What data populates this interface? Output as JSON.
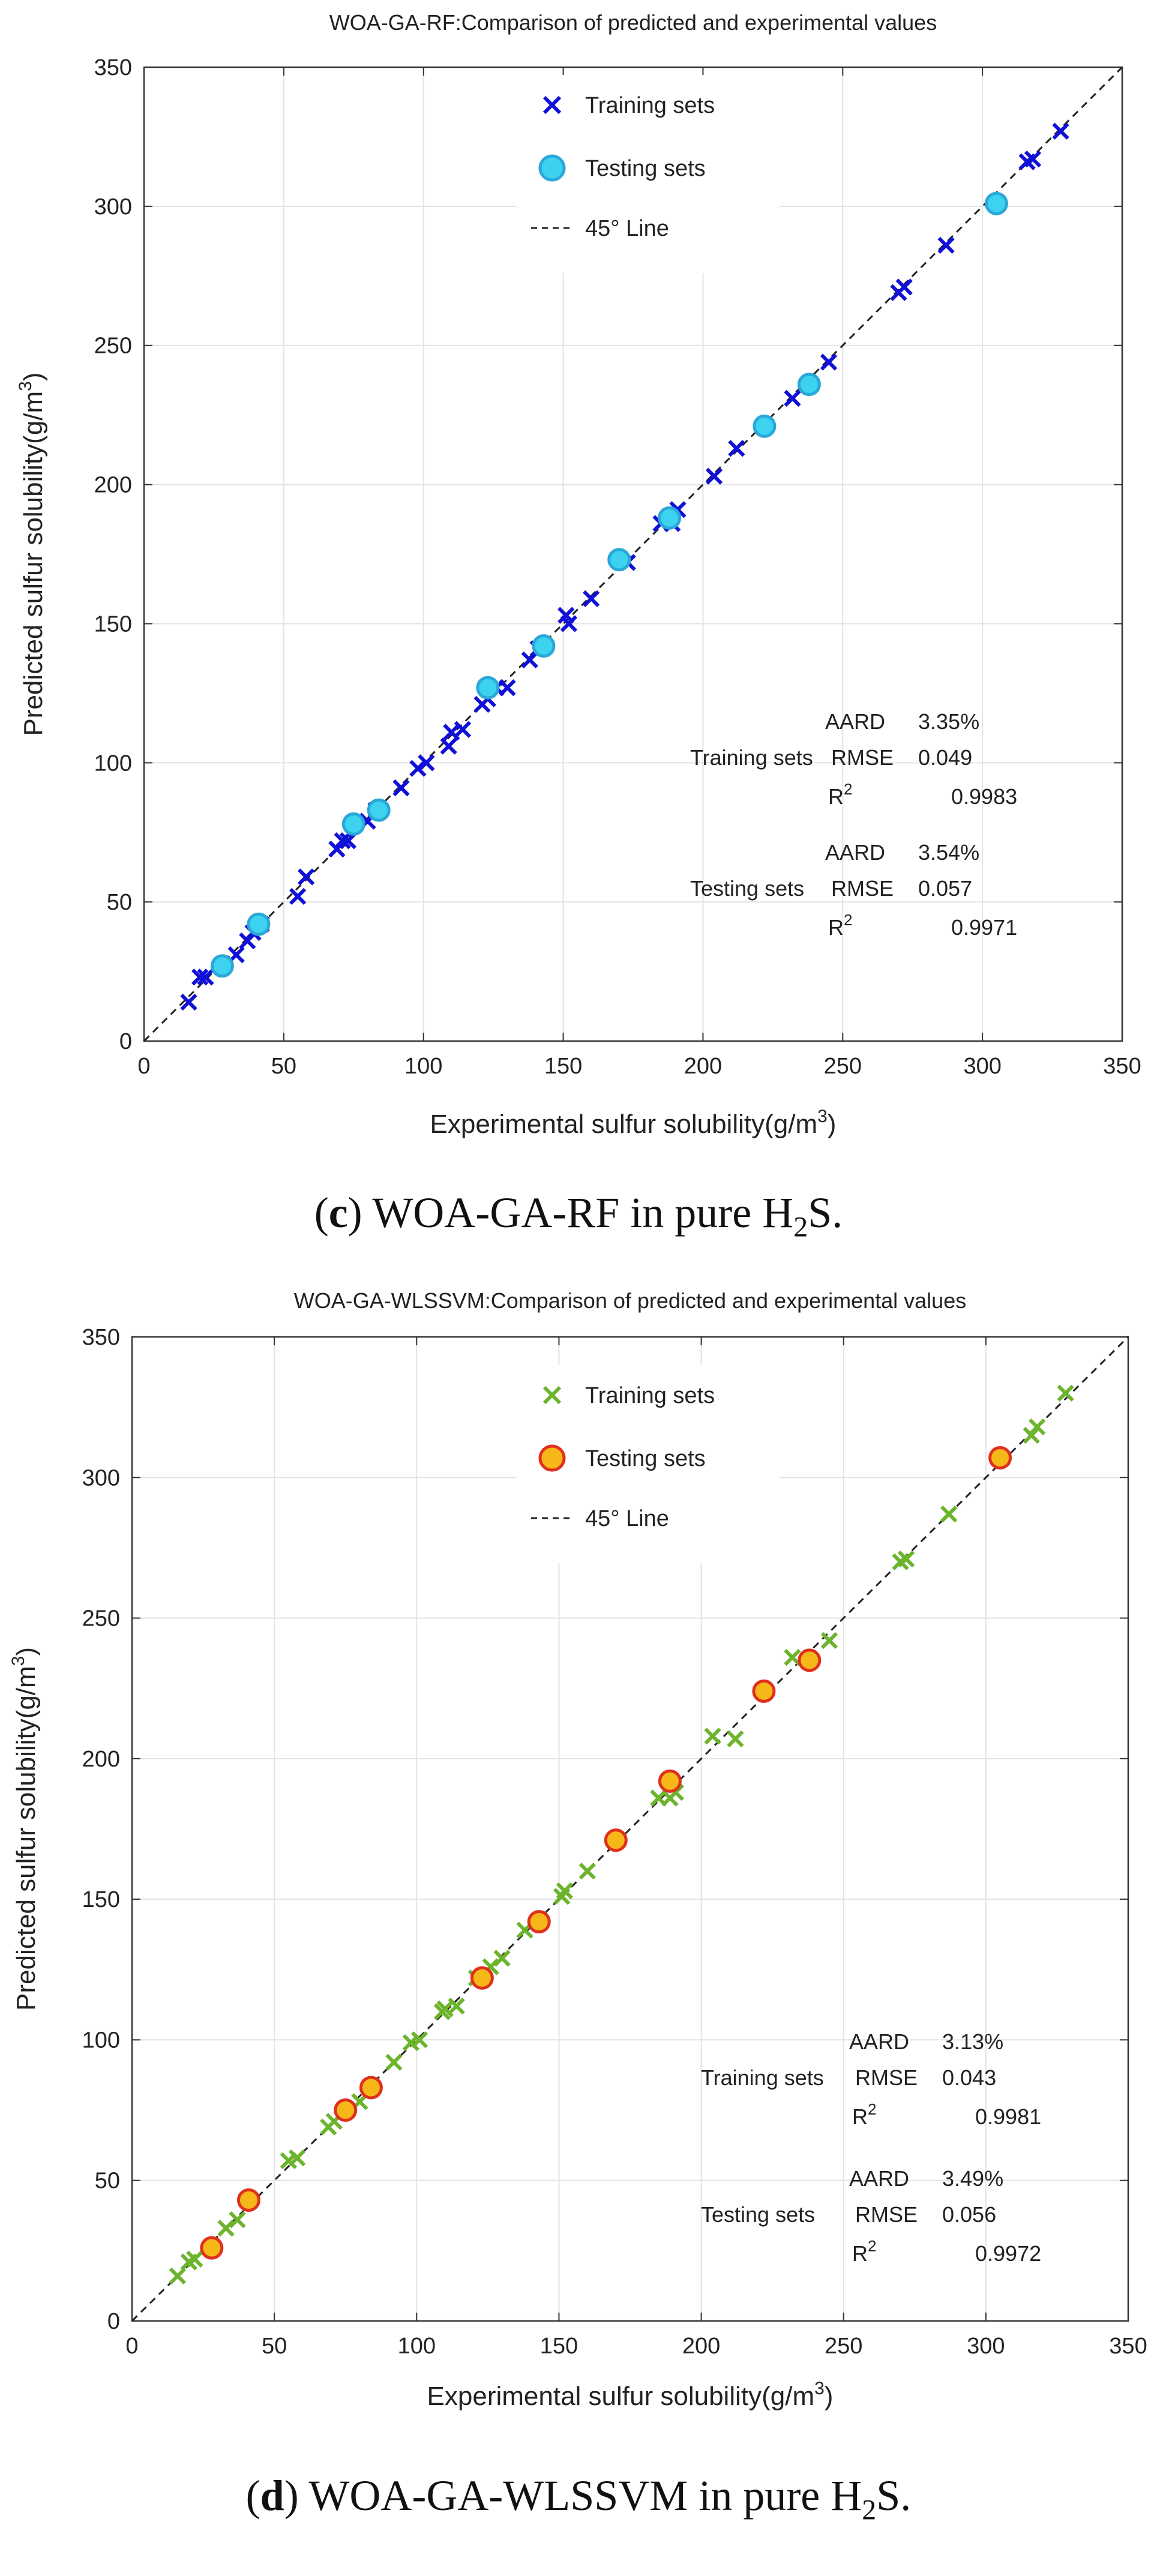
{
  "chart_data": [
    {
      "type": "scatter",
      "title": "WOA-GA-RF:Comparison of predicted and experimental values",
      "xlabel": "Experimental sulfur solubility(g/m",
      "xlabel_sup": "3",
      "xlabel_end": ")",
      "ylabel": "Predicted sulfur solubility(g/m",
      "ylabel_sup": "3",
      "ylabel_end": ")",
      "xlim": [
        0,
        350
      ],
      "ylim": [
        0,
        350
      ],
      "xticks": [
        0,
        50,
        100,
        150,
        200,
        250,
        300,
        350
      ],
      "yticks": [
        0,
        50,
        100,
        150,
        200,
        250,
        300,
        350
      ],
      "grid": true,
      "legend_position": "top",
      "legend": {
        "training": "Training sets",
        "testing": "Testing sets",
        "line": "45° Line"
      },
      "colors": {
        "training": "#1010d8",
        "testing_fill": "#3cd2f0",
        "testing_edge": "#2aa8d8",
        "line": "#222222"
      },
      "series": [
        {
          "name": "Training sets",
          "marker": "x",
          "points": [
            [
              16,
              14
            ],
            [
              20,
              23
            ],
            [
              22,
              23
            ],
            [
              33,
              31
            ],
            [
              37,
              36
            ],
            [
              39,
              39
            ],
            [
              42,
              42
            ],
            [
              55,
              52
            ],
            [
              58,
              59
            ],
            [
              69,
              69
            ],
            [
              71,
              72
            ],
            [
              73,
              72
            ],
            [
              80,
              79
            ],
            [
              83,
              83
            ],
            [
              92,
              91
            ],
            [
              98,
              98
            ],
            [
              101,
              100
            ],
            [
              109,
              106
            ],
            [
              110,
              111
            ],
            [
              114,
              112
            ],
            [
              121,
              121
            ],
            [
              123,
              123
            ],
            [
              126,
              127
            ],
            [
              130,
              127
            ],
            [
              138,
              137
            ],
            [
              141,
              141
            ],
            [
              151,
              153
            ],
            [
              152,
              150
            ],
            [
              160,
              159
            ],
            [
              173,
              172
            ],
            [
              185,
              186
            ],
            [
              189,
              186
            ],
            [
              191,
              191
            ],
            [
              204,
              203
            ],
            [
              212,
              213
            ],
            [
              232,
              231
            ],
            [
              245,
              244
            ],
            [
              270,
              269
            ],
            [
              272,
              271
            ],
            [
              287,
              286
            ],
            [
              316,
              316
            ],
            [
              318,
              317
            ],
            [
              328,
              327
            ]
          ]
        },
        {
          "name": "Testing sets",
          "marker": "circle",
          "points": [
            [
              28,
              27
            ],
            [
              41,
              42
            ],
            [
              75,
              78
            ],
            [
              84,
              83
            ],
            [
              123,
              127
            ],
            [
              143,
              142
            ],
            [
              170,
              173
            ],
            [
              188,
              188
            ],
            [
              222,
              221
            ],
            [
              238,
              236
            ],
            [
              305,
              301
            ]
          ]
        }
      ],
      "stats": {
        "training_label": "Training sets",
        "testing_label": "Testing sets",
        "aard_label": "AARD",
        "rmse_label": "RMSE",
        "r2_label": "R",
        "r2_sup": "2",
        "training": {
          "aard": "3.35%",
          "rmse": "0.049",
          "r2": "0.9983"
        },
        "testing": {
          "aard": "3.54%",
          "rmse": "0.057",
          "r2": "0.9971"
        }
      }
    },
    {
      "type": "scatter",
      "title": "WOA-GA-WLSSVM:Comparison of predicted and experimental values",
      "xlabel": "Experimental sulfur solubility(g/m",
      "xlabel_sup": "3",
      "xlabel_end": ")",
      "ylabel": "Predicted sulfur solubility(g/m",
      "ylabel_sup": "3",
      "ylabel_end": ")",
      "xlim": [
        0,
        350
      ],
      "ylim": [
        0,
        350
      ],
      "xticks": [
        0,
        50,
        100,
        150,
        200,
        250,
        300,
        350
      ],
      "yticks": [
        0,
        50,
        100,
        150,
        200,
        250,
        300,
        350
      ],
      "grid": true,
      "legend_position": "top",
      "legend": {
        "training": "Training sets",
        "testing": "Testing sets",
        "line": "45° Line"
      },
      "colors": {
        "training": "#6cb42c",
        "testing_fill": "#f5b818",
        "testing_edge": "#e0301e",
        "line": "#222222"
      },
      "series": [
        {
          "name": "Training sets",
          "marker": "x",
          "points": [
            [
              16,
              16
            ],
            [
              20,
              21
            ],
            [
              22,
              22
            ],
            [
              33,
              33
            ],
            [
              37,
              36
            ],
            [
              55,
              57
            ],
            [
              58,
              58
            ],
            [
              69,
              69
            ],
            [
              71,
              71
            ],
            [
              80,
              78
            ],
            [
              92,
              92
            ],
            [
              98,
              99
            ],
            [
              101,
              100
            ],
            [
              109,
              110
            ],
            [
              110,
              111
            ],
            [
              114,
              112
            ],
            [
              121,
              122
            ],
            [
              126,
              126
            ],
            [
              130,
              129
            ],
            [
              138,
              139
            ],
            [
              151,
              151
            ],
            [
              152,
              153
            ],
            [
              160,
              160
            ],
            [
              185,
              186
            ],
            [
              189,
              186
            ],
            [
              191,
              188
            ],
            [
              204,
              208
            ],
            [
              212,
              207
            ],
            [
              232,
              236
            ],
            [
              245,
              242
            ],
            [
              270,
              270
            ],
            [
              272,
              271
            ],
            [
              287,
              287
            ],
            [
              316,
              315
            ],
            [
              318,
              318
            ],
            [
              328,
              330
            ]
          ]
        },
        {
          "name": "Testing sets",
          "marker": "circle",
          "points": [
            [
              28,
              26
            ],
            [
              41,
              43
            ],
            [
              75,
              75
            ],
            [
              84,
              83
            ],
            [
              123,
              122
            ],
            [
              143,
              142
            ],
            [
              170,
              171
            ],
            [
              189,
              192
            ],
            [
              222,
              224
            ],
            [
              238,
              235
            ],
            [
              305,
              307
            ]
          ]
        }
      ],
      "stats": {
        "training_label": "Training sets",
        "testing_label": "Testing sets",
        "aard_label": "AARD",
        "rmse_label": "RMSE",
        "r2_label": "R",
        "r2_sup": "2",
        "training": {
          "aard": "3.13%",
          "rmse": "0.043",
          "r2": "0.9981"
        },
        "testing": {
          "aard": "3.49%",
          "rmse": "0.056",
          "r2": "0.9972"
        }
      }
    }
  ],
  "captions": [
    {
      "letter": "c",
      "text": " WOA-GA-RF in pure H",
      "sub": "2",
      "end": "S."
    },
    {
      "letter": "d",
      "text": " WOA-GA-WLSSVM in pure H",
      "sub": "2",
      "end": "S."
    }
  ]
}
